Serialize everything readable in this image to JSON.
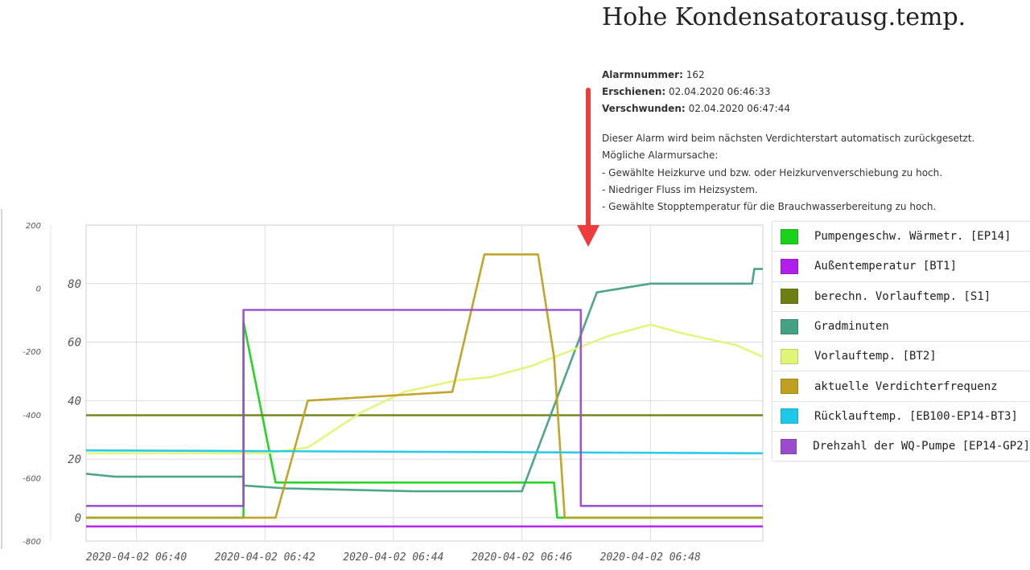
{
  "alarm": {
    "title": "Hohe Kondensatorausg.temp.",
    "number_label": "Alarmnummer:",
    "number_value": "162",
    "appeared_label": "Erschienen:",
    "appeared_value": "02.04.2020 06:46:33",
    "disappeared_label": "Verschwunden:",
    "disappeared_value": "02.04.2020 06:47:44",
    "description": [
      "Dieser Alarm wird beim nächsten Verdichterstart automatisch zurückgesetzt.",
      "Mögliche Alarmursache:",
      "- Gewählte Heizkurve und bzw. oder Heizkurvenverschiebung zu hoch.",
      "- Niedriger Fluss im Heizsystem.",
      "- Gewählte Stopptemperatur für die Brauchwasserbereitung zu hoch."
    ]
  },
  "chart_data": {
    "type": "line",
    "x_ticks": [
      "2020-04-02 06:40",
      "2020-04-02 06:42",
      "2020-04-02 06:44",
      "2020-04-02 06:46",
      "2020-04-02 06:48"
    ],
    "x_range": [
      "2020-04-02 06:39:13",
      "2020-04-02 06:49:45"
    ],
    "y_left": {
      "ticks": [
        0,
        20,
        40,
        60,
        80
      ],
      "range": [
        -8,
        100
      ]
    },
    "y_outer": {
      "ticks": [
        200,
        0,
        -200,
        -400,
        -600,
        -800
      ],
      "range": [
        -800,
        200
      ]
    },
    "grid": true,
    "legend_position": "right",
    "series": [
      {
        "name": "Pumpengeschw. Wärmetr. [EP14]",
        "color": "#19d219",
        "points": [
          [
            "06:39:13",
            0
          ],
          [
            "06:41:40",
            0
          ],
          [
            "06:41:40",
            67
          ],
          [
            "06:42:10",
            12
          ],
          [
            "06:46:30",
            12
          ],
          [
            "06:46:33",
            0
          ],
          [
            "06:49:45",
            0
          ]
        ]
      },
      {
        "name": "Außentemperatur [BT1]",
        "color": "#b020ea",
        "points": [
          [
            "06:39:13",
            -3
          ],
          [
            "06:49:45",
            -3
          ]
        ]
      },
      {
        "name": "berechn. Vorlauftemp. [S1]",
        "color": "#6b7f14",
        "points": [
          [
            "06:39:13",
            35
          ],
          [
            "06:49:45",
            35
          ]
        ]
      },
      {
        "name": "Gradminuten",
        "color": "#46a084",
        "points": [
          [
            "06:39:13",
            15
          ],
          [
            "06:39:40",
            14
          ],
          [
            "06:41:40",
            14
          ],
          [
            "06:41:40",
            11
          ],
          [
            "06:42:20",
            10
          ],
          [
            "06:44:20",
            9
          ],
          [
            "06:46:00",
            9
          ],
          [
            "06:47:10",
            77
          ],
          [
            "06:48:00",
            80
          ],
          [
            "06:49:35",
            80
          ],
          [
            "06:49:37",
            85
          ],
          [
            "06:49:45",
            85
          ]
        ]
      },
      {
        "name": "Vorlauftemp. [BT2]",
        "color": "#e0f577",
        "points": [
          [
            "06:39:13",
            22
          ],
          [
            "06:42:00",
            22
          ],
          [
            "06:42:40",
            24
          ],
          [
            "06:43:30",
            36
          ],
          [
            "06:44:10",
            43
          ],
          [
            "06:45:00",
            47
          ],
          [
            "06:45:30",
            48
          ],
          [
            "06:46:10",
            52
          ],
          [
            "06:47:20",
            62
          ],
          [
            "06:48:00",
            66
          ],
          [
            "06:48:30",
            63
          ],
          [
            "06:49:20",
            59
          ],
          [
            "06:49:45",
            55
          ]
        ]
      },
      {
        "name": "aktuelle Verdichterfrequenz",
        "color": "#bfa020",
        "points": [
          [
            "06:39:13",
            0
          ],
          [
            "06:42:10",
            0
          ],
          [
            "06:42:40",
            40
          ],
          [
            "06:44:55",
            43
          ],
          [
            "06:45:25",
            90
          ],
          [
            "06:46:15",
            90
          ],
          [
            "06:46:30",
            55
          ],
          [
            "06:46:40",
            0
          ],
          [
            "06:49:45",
            0
          ]
        ]
      },
      {
        "name": "Rücklauftemp. [EB100-EP14-BT3]",
        "color": "#1ec8e8",
        "points": [
          [
            "06:39:13",
            23
          ],
          [
            "06:49:45",
            22
          ]
        ]
      },
      {
        "name": "Drehzahl der WQ-Pumpe [EP14-GP2]",
        "color": "#9a4ccc",
        "points": [
          [
            "06:39:13",
            4
          ],
          [
            "06:41:40",
            4
          ],
          [
            "06:41:40",
            71
          ],
          [
            "06:46:55",
            71
          ],
          [
            "06:46:55",
            4
          ],
          [
            "06:49:45",
            4
          ]
        ]
      }
    ]
  }
}
